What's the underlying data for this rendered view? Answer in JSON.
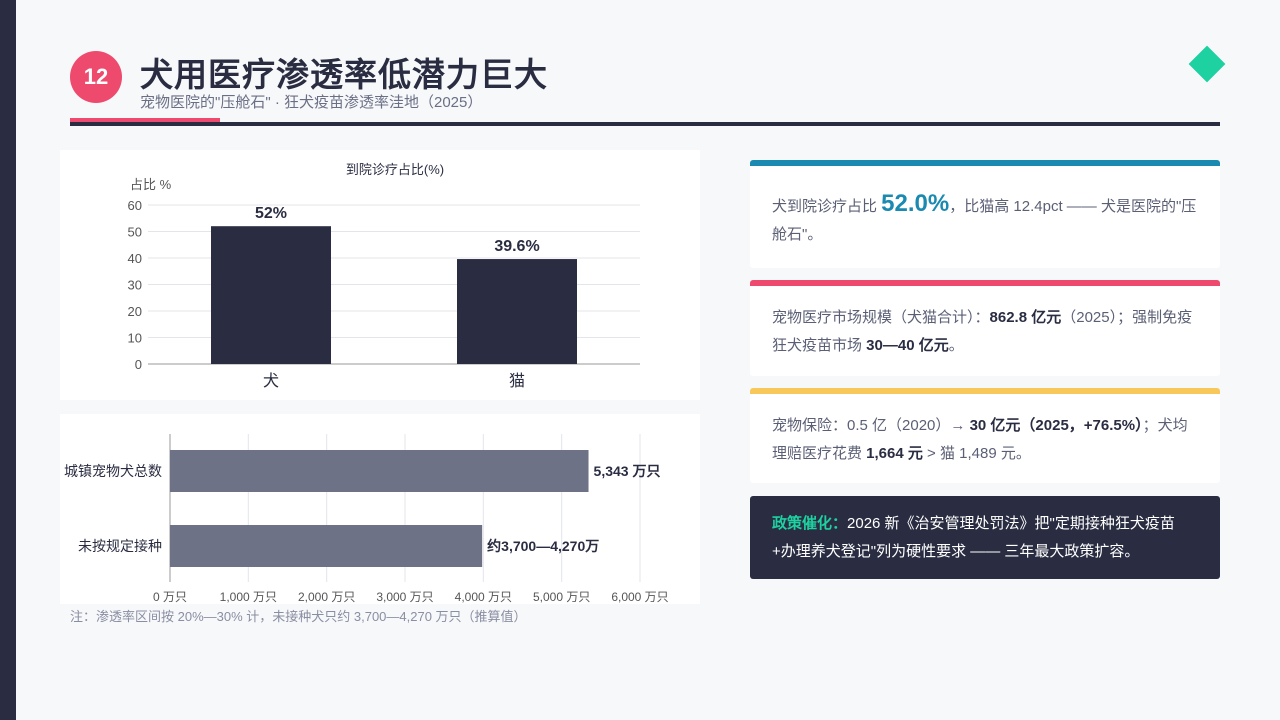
{
  "header": {
    "number": "12",
    "title": "犬用医疗渗透率低潜力巨大",
    "subtitle": "宠物医院的\"压舱石\" · 狂犬疫苗渗透率洼地（2025）"
  },
  "colors": {
    "dark": "#2a2d42",
    "accent_pink": "#ee4a6e",
    "accent_green": "#1dd1a1",
    "accent_blue": "#1a8ab0",
    "accent_yellow": "#f9c85a",
    "bar_gray": "#6e7287"
  },
  "chart_data": [
    {
      "type": "bar",
      "title": "到院诊疗占比(%)",
      "ylabel": "占比 %",
      "categories": [
        "犬",
        "猫"
      ],
      "values": [
        52,
        39.6
      ],
      "value_labels": [
        "52%",
        "39.6%"
      ],
      "ylim": [
        0,
        60
      ],
      "yticks": [
        0,
        10,
        20,
        30,
        40,
        50,
        60
      ],
      "grid": true
    },
    {
      "type": "bar",
      "orientation": "horizontal",
      "categories": [
        "城镇宠物犬总数",
        "未按规定接种"
      ],
      "values": [
        5343,
        3985
      ],
      "value_labels": [
        "5,343 万只",
        "约3,700—4,270万"
      ],
      "xlim": [
        0,
        6000
      ],
      "xticks": [
        0,
        1000,
        2000,
        3000,
        4000,
        5000,
        6000
      ],
      "xtick_labels": [
        "0 万只",
        "1,000 万只",
        "2,000 万只",
        "3,000 万只",
        "4,000 万只",
        "5,000 万只",
        "6,000 万只"
      ],
      "grid": true
    }
  ],
  "footnote": "注：渗透率区间按 20%—30% 计，未接种犬只约 3,700—4,270 万只（推算值）",
  "cards": {
    "c1": {
      "pre": "犬到院诊疗占比 ",
      "big": "52.0%",
      "post": "，比猫高 12.4pct —— 犬是医院的\"压舱石\"。"
    },
    "c2": {
      "pre": "宠物医疗市场规模（犬猫合计）：",
      "b1": "862.8 亿元",
      "mid": "（2025）；强制免疫狂犬疫苗市场 ",
      "b2": "30—40 亿元",
      "post": "。"
    },
    "c3": {
      "pre": "宠物保险：0.5 亿（2020）→ ",
      "b1": "30 亿元（2025，+76.5%）",
      "mid": "；犬均理赔医疗花费 ",
      "b2": "1,664 元",
      "post": " > 猫 1,489 元。"
    },
    "c4": {
      "label": "政策催化：",
      "text": "2026 新《治安管理处罚法》把\"定期接种狂犬疫苗+办理养犬登记\"列为硬性要求 —— 三年最大政策扩容。"
    }
  }
}
